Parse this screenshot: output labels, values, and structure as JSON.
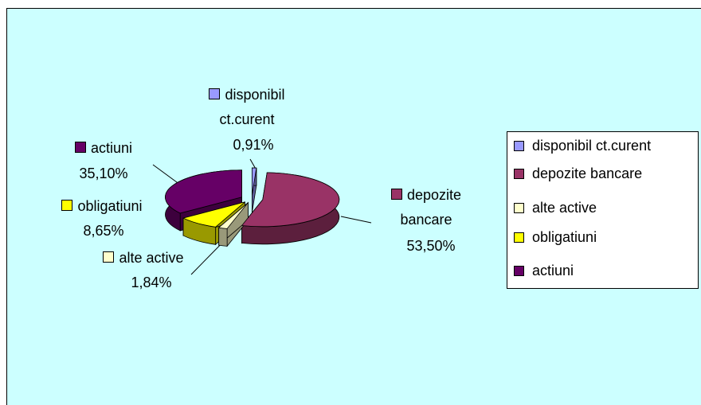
{
  "chart_data": {
    "type": "pie3d",
    "categories": [
      "disponibil ct.curent",
      "depozite bancare",
      "alte active",
      "obligatiuni",
      "actiuni"
    ],
    "values": [
      0.91,
      53.5,
      1.84,
      8.65,
      35.1
    ],
    "value_labels": [
      "0,91%",
      "53,50%",
      "1,84%",
      "8,65%",
      "35,10%"
    ],
    "colors": [
      "#9999ff",
      "#993366",
      "#ffffcc",
      "#ffff00",
      "#660066"
    ],
    "legend": "right"
  }
}
